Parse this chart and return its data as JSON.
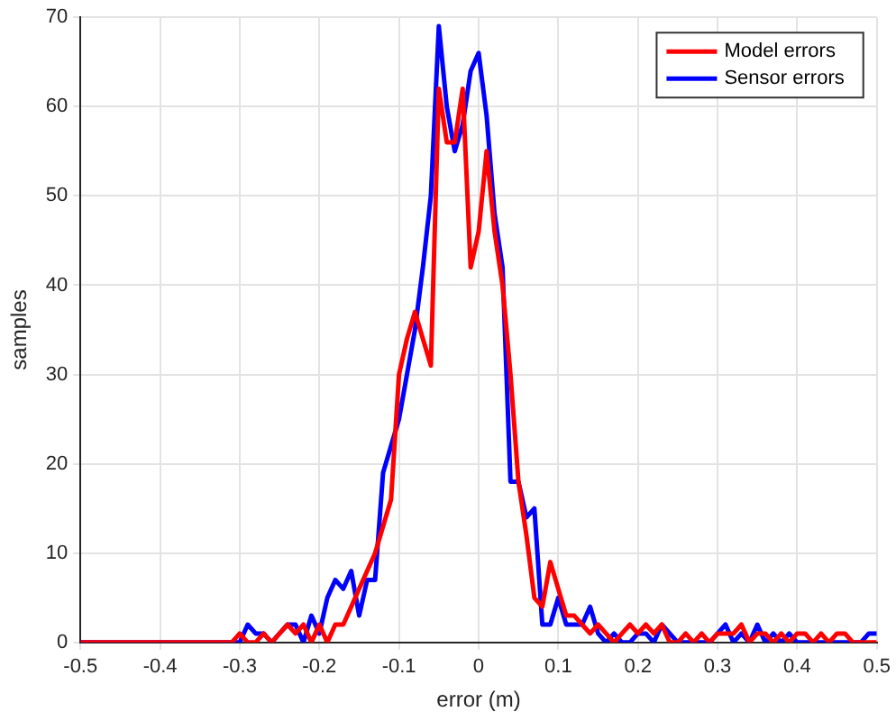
{
  "chart_data": {
    "type": "line",
    "xlabel": "error (m)",
    "ylabel": "samples",
    "x": [
      -0.5,
      -0.31,
      -0.3,
      -0.29,
      -0.28,
      -0.27,
      -0.26,
      -0.25,
      -0.24,
      -0.23,
      -0.22,
      -0.21,
      -0.2,
      -0.19,
      -0.18,
      -0.17,
      -0.16,
      -0.15,
      -0.14,
      -0.13,
      -0.12,
      -0.11,
      -0.1,
      -0.09,
      -0.08,
      -0.07,
      -0.06,
      -0.05,
      -0.04,
      -0.03,
      -0.02,
      -0.01,
      0,
      0.01,
      0.02,
      0.03,
      0.04,
      0.05,
      0.06,
      0.07,
      0.08,
      0.09,
      0.1,
      0.11,
      0.12,
      0.13,
      0.14,
      0.15,
      0.16,
      0.17,
      0.18,
      0.19,
      0.2,
      0.21,
      0.22,
      0.23,
      0.24,
      0.25,
      0.26,
      0.27,
      0.28,
      0.29,
      0.3,
      0.31,
      0.32,
      0.33,
      0.34,
      0.35,
      0.36,
      0.37,
      0.38,
      0.39,
      0.4,
      0.41,
      0.42,
      0.43,
      0.44,
      0.45,
      0.46,
      0.47,
      0.48,
      0.49,
      0.5
    ],
    "series": [
      {
        "name": "Model errors",
        "color": "#ff0000",
        "values": [
          0,
          0,
          1,
          0,
          0,
          1,
          0,
          1,
          2,
          1,
          2,
          0,
          2,
          0,
          2,
          2,
          4,
          6,
          8,
          10,
          13,
          16,
          30,
          34,
          37,
          34,
          31,
          62,
          56,
          56,
          62,
          42,
          46,
          55,
          46,
          40,
          30,
          18,
          12,
          5,
          4,
          9,
          6,
          3,
          3,
          2,
          1,
          2,
          1,
          0,
          1,
          2,
          1,
          2,
          1,
          2,
          0,
          0,
          1,
          0,
          1,
          0,
          1,
          1,
          1,
          2,
          0,
          1,
          1,
          0,
          1,
          0,
          1,
          1,
          0,
          1,
          0,
          1,
          1,
          0,
          0,
          0,
          0
        ]
      },
      {
        "name": "Sensor errors",
        "color": "#0000ff",
        "values": [
          0,
          0,
          0,
          2,
          1,
          1,
          0,
          1,
          2,
          2,
          0,
          3,
          1,
          5,
          7,
          6,
          8,
          3,
          7,
          7,
          19,
          22,
          25,
          30,
          35,
          42,
          50,
          69,
          60,
          55,
          58,
          64,
          66,
          59,
          48,
          42,
          18,
          18,
          14,
          15,
          2,
          2,
          5,
          2,
          2,
          2,
          4,
          1,
          0,
          1,
          0,
          0,
          1,
          1,
          0,
          2,
          1,
          0,
          0,
          0,
          0,
          0,
          1,
          2,
          0,
          1,
          0,
          2,
          0,
          1,
          0,
          1,
          0,
          0,
          0,
          0,
          0,
          0,
          0,
          0,
          0,
          1,
          1
        ]
      }
    ],
    "xlim": [
      -0.5,
      0.5
    ],
    "xticks": [
      -0.5,
      -0.4,
      -0.3,
      -0.2,
      -0.1,
      0,
      0.1,
      0.2,
      0.3,
      0.4,
      0.5
    ],
    "ylim": [
      0,
      70
    ],
    "yticks": [
      0,
      10,
      20,
      30,
      40,
      50,
      60,
      70
    ],
    "grid": true,
    "legend": "top right",
    "marker": "none",
    "line_style": "solid"
  }
}
